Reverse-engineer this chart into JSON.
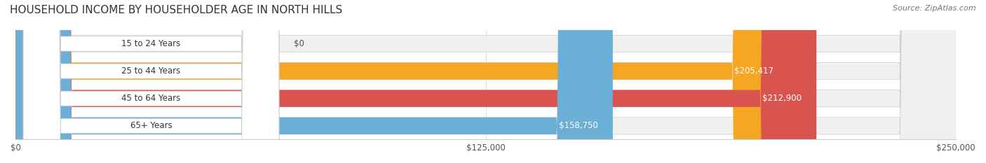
{
  "title": "HOUSEHOLD INCOME BY HOUSEHOLDER AGE IN NORTH HILLS",
  "source": "Source: ZipAtlas.com",
  "categories": [
    "15 to 24 Years",
    "25 to 44 Years",
    "45 to 64 Years",
    "65+ Years"
  ],
  "values": [
    0,
    205417,
    212900,
    158750
  ],
  "bar_colors": [
    "#f4a0b0",
    "#f5a623",
    "#d9534f",
    "#6baed6"
  ],
  "bar_bg_color": "#eeeeee",
  "label_values": [
    "$0",
    "$205,417",
    "$212,900",
    "$158,750"
  ],
  "x_ticks": [
    0,
    125000,
    250000
  ],
  "x_tick_labels": [
    "$0",
    "$125,000",
    "$250,000"
  ],
  "xlim": [
    0,
    250000
  ],
  "figsize": [
    14.06,
    2.33
  ],
  "dpi": 100,
  "title_fontsize": 11,
  "source_fontsize": 8,
  "bar_label_fontsize": 8.5,
  "value_fontsize": 8.5,
  "tick_fontsize": 8.5
}
